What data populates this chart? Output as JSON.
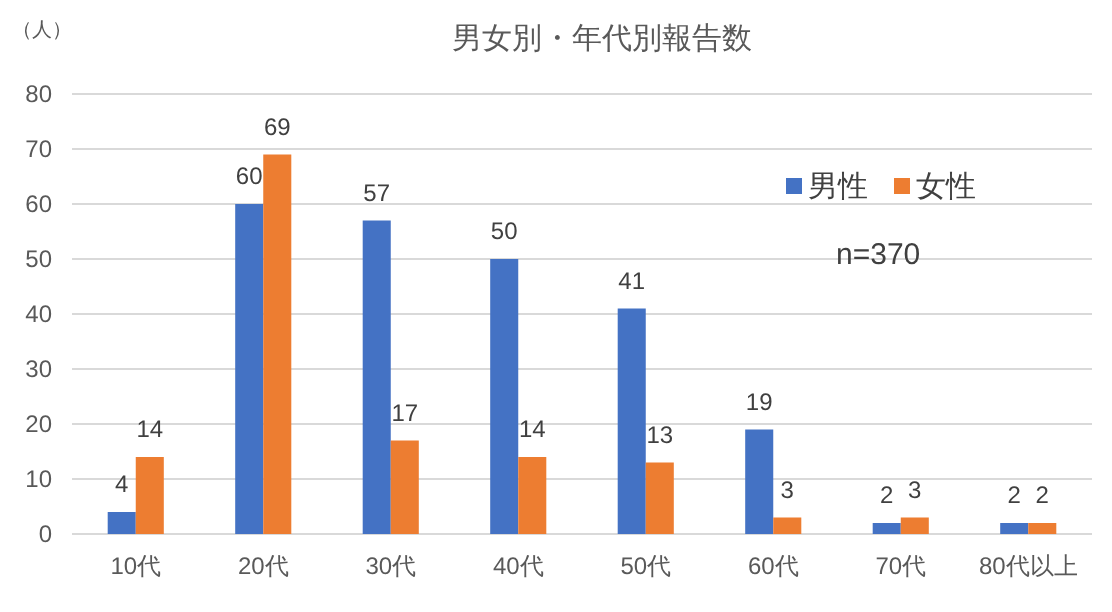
{
  "chart_data": {
    "type": "bar",
    "title": "男女別・年代別報告数",
    "ylabel": "（人）",
    "annotations": [
      "n=370"
    ],
    "categories": [
      "10代",
      "20代",
      "30代",
      "40代",
      "50代",
      "60代",
      "70代",
      "80代以上"
    ],
    "series": [
      {
        "name": "男性",
        "color": "#4472c4",
        "values": [
          4,
          60,
          57,
          50,
          41,
          19,
          2,
          2
        ]
      },
      {
        "name": "女性",
        "color": "#ed7d31",
        "values": [
          14,
          69,
          17,
          14,
          13,
          3,
          3,
          2
        ]
      }
    ],
    "ylim": [
      0,
      80
    ],
    "yticks": [
      0,
      10,
      20,
      30,
      40,
      50,
      60,
      70,
      80
    ],
    "grid": "y",
    "legend": "top right",
    "data_labels": true
  }
}
